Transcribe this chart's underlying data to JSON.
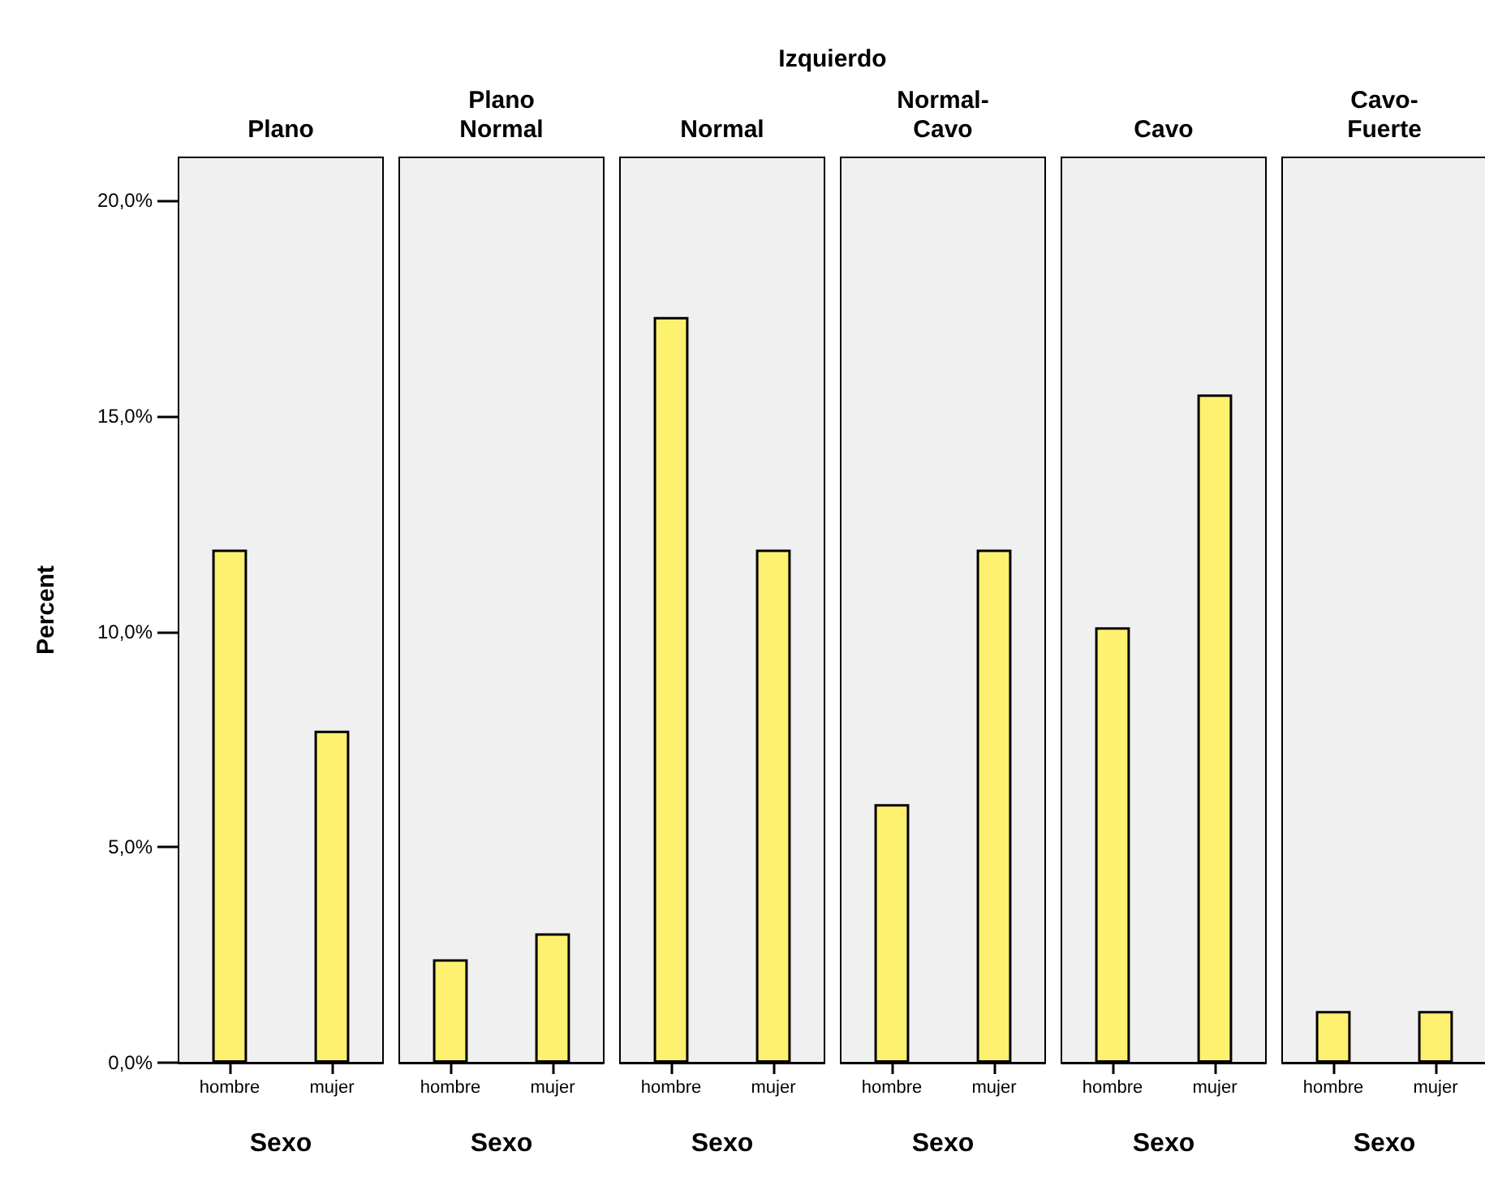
{
  "chart_data": [
    {
      "type": "bar",
      "title": "Plano",
      "annotations": [
        "Izquierdo"
      ],
      "categories": [
        "hombre",
        "mujer"
      ],
      "values": [
        11.9,
        7.7
      ],
      "color": "#fff170",
      "xlabel": "Sexo",
      "ylabel": "Percent",
      "ylim": [
        0,
        21
      ],
      "yticks": [
        {
          "value": 0,
          "label": "0,0%"
        },
        {
          "value": 5,
          "label": "5,0%"
        },
        {
          "value": 10,
          "label": "10,0%"
        },
        {
          "value": 15,
          "label": "15,0%"
        },
        {
          "value": 20,
          "label": "20,0%"
        }
      ],
      "grid": false
    },
    {
      "type": "bar",
      "title": "Plano Normal",
      "categories": [
        "hombre",
        "mujer"
      ],
      "values": [
        2.4,
        3.0
      ],
      "color": "#fff170",
      "xlabel": "Sexo",
      "ylim": [
        0,
        21
      ],
      "tick_labels": "x",
      "grid": false
    },
    {
      "type": "bar",
      "title": "Normal",
      "categories": [
        "hombre",
        "mujer"
      ],
      "values": [
        17.3,
        11.9
      ],
      "color": "#fff170",
      "xlabel": "Sexo",
      "ylim": [
        0,
        21
      ],
      "tick_labels": "x",
      "grid": false
    },
    {
      "type": "bar",
      "title": "Normal-Cavo",
      "categories": [
        "hombre",
        "mujer"
      ],
      "values": [
        6.0,
        11.9
      ],
      "color": "#fff170",
      "xlabel": "Sexo",
      "ylim": [
        0,
        21
      ],
      "tick_labels": "x",
      "grid": false
    },
    {
      "type": "bar",
      "title": "Cavo",
      "categories": [
        "hombre",
        "mujer"
      ],
      "values": [
        10.1,
        15.5
      ],
      "color": "#fff170",
      "xlabel": "Sexo",
      "ylim": [
        0,
        21
      ],
      "tick_labels": "x",
      "grid": false
    },
    {
      "type": "bar",
      "title": "Cavo-Fuerte",
      "categories": [
        "hombre",
        "mujer"
      ],
      "values": [
        1.2,
        1.2
      ],
      "color": "#fff170",
      "xlabel": "Sexo",
      "ylim": [
        0,
        21
      ],
      "tick_labels": "x",
      "grid": false
    }
  ]
}
